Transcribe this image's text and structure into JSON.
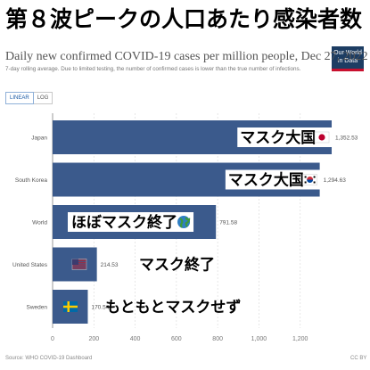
{
  "banner": "第８波ピークの人口あたり感染者数",
  "logo": {
    "line1": "Our World",
    "line2": "in Data"
  },
  "title": "Daily new confirmed COVID-19 cases per million people, Dec 27, 2022",
  "subtitle": "7-day rolling average. Due to limited testing, the number of confirmed cases is lower than the true number of infections.",
  "scale_toggle": {
    "linear": "LINEAR",
    "log": "LOG"
  },
  "source": "Source: WHO COVID-19 Dashboard",
  "license": "CC BY",
  "colors": {
    "bar": "#3b5a8c",
    "grid": "#dddddd",
    "axis": "#777777"
  },
  "chart_data": {
    "type": "bar",
    "orientation": "horizontal",
    "categories": [
      "Japan",
      "South Korea",
      "World",
      "United States",
      "Sweden"
    ],
    "values": [
      1352.53,
      1294.63,
      791.58,
      214.53,
      170.54
    ],
    "value_labels": [
      "1,352.53",
      "1,294.63",
      "791.58",
      "214.53",
      "170.54"
    ],
    "xlim": [
      0,
      1400
    ],
    "xticks": [
      0,
      200,
      400,
      600,
      800,
      1000,
      1200
    ],
    "xtick_labels": [
      "0",
      "200",
      "400",
      "600",
      "800",
      "1,000",
      "1,200"
    ],
    "grid": true,
    "annotations": [
      "マスク大国",
      "マスク大国",
      "ほぼマスク終了",
      "マスク終了",
      "もともとマスクせず"
    ],
    "flag_icons": [
      "japan-flag-icon",
      "south-korea-flag-icon",
      "globe-icon",
      "us-flag-icon",
      "sweden-flag-icon"
    ]
  }
}
